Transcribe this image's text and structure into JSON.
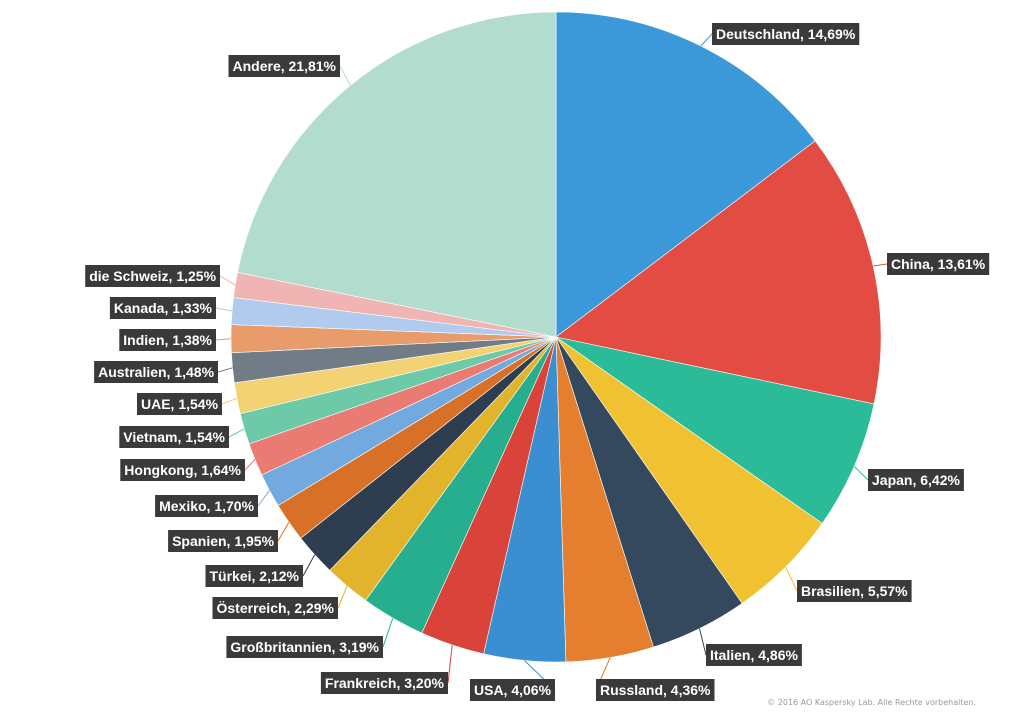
{
  "chart_data": {
    "type": "pie",
    "title": "",
    "start": "top",
    "direction": "clockwise",
    "slices": [
      {
        "label": "Deutschland, 14,69%",
        "name": "Deutschland",
        "value": 14.69,
        "color": "#3b98d9"
      },
      {
        "label": "China, 13,61%",
        "name": "China",
        "value": 13.61,
        "color": "#e34c42"
      },
      {
        "label": "Japan, 6,42%",
        "name": "Japan",
        "value": 6.42,
        "color": "#2bbb98"
      },
      {
        "label": "Brasilien, 5,57%",
        "name": "Brasilien",
        "value": 5.57,
        "color": "#f0c232"
      },
      {
        "label": "Italien, 4,86%",
        "name": "Italien",
        "value": 4.86,
        "color": "#34485e"
      },
      {
        "label": "Russland, 4,36%",
        "name": "Russland",
        "value": 4.36,
        "color": "#e57f2f"
      },
      {
        "label": "USA, 4,06%",
        "name": "USA",
        "value": 4.06,
        "color": "#3b8fd0"
      },
      {
        "label": "Frankreich, 3,20%",
        "name": "Frankreich",
        "value": 3.2,
        "color": "#d9433a"
      },
      {
        "label": "Großbritannien, 3,19%",
        "name": "Großbritannien",
        "value": 3.19,
        "color": "#27ae8e"
      },
      {
        "label": "Österreich, 2,29%",
        "name": "Österreich",
        "value": 2.29,
        "color": "#e2b42c"
      },
      {
        "label": "Türkei, 2,12%",
        "name": "Türkei",
        "value": 2.12,
        "color": "#2e3e50"
      },
      {
        "label": "Spanien, 1,95%",
        "name": "Spanien",
        "value": 1.95,
        "color": "#d87127"
      },
      {
        "label": "Mexiko, 1,70%",
        "name": "Mexiko",
        "value": 1.7,
        "color": "#72a9de"
      },
      {
        "label": "Hongkong, 1,64%",
        "name": "Hongkong",
        "value": 1.64,
        "color": "#e97b72"
      },
      {
        "label": "Vietnam, 1,54%",
        "name": "Vietnam",
        "value": 1.54,
        "color": "#6ccaa9"
      },
      {
        "label": "UAE, 1,54%",
        "name": "UAE",
        "value": 1.54,
        "color": "#f2d272"
      },
      {
        "label": "Australien, 1,48%",
        "name": "Australien",
        "value": 1.48,
        "color": "#717c87"
      },
      {
        "label": "Indien, 1,38%",
        "name": "Indien",
        "value": 1.38,
        "color": "#e89c6c"
      },
      {
        "label": "Kanada, 1,33%",
        "name": "Kanada",
        "value": 1.33,
        "color": "#b0cbee"
      },
      {
        "label": "die Schweiz, 1,25%",
        "name": "die Schweiz",
        "value": 1.25,
        "color": "#f0b4b2"
      },
      {
        "label": "Andere, 21,81%",
        "name": "Andere",
        "value": 21.81,
        "color": "#b2dccd"
      }
    ]
  },
  "footer": {
    "copyright": "© 2016 AO Kaspersky Lab. Alle Rechte vorbehalten."
  }
}
